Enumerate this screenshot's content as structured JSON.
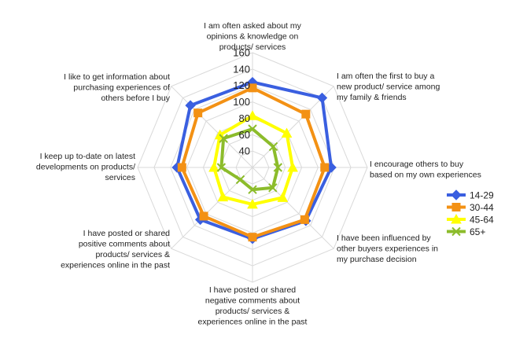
{
  "chart_data": {
    "type": "radar",
    "title": "",
    "rmin": 20,
    "rmax": 160,
    "ticks": [
      40,
      60,
      80,
      100,
      120,
      140,
      160
    ],
    "categories": [
      "I am often asked about my opinions & knowledge on products/ services",
      "I am often the first to buy a new product/ service among my family & friends",
      "I encourage others to buy based on my own experiences",
      "I have been influenced by other buyers experiences in my purchase decision",
      "I have posted or shared negative comments about products/ services & experiences online in the past",
      "I have posted or shared positive comments about products/ services & experiences online in the past",
      "I keep up to-date on latest developments on products/ services",
      "I like to get information about purchasing experiences of others before I buy"
    ],
    "category_lines": [
      [
        "I am often asked about my",
        "opinions & knowledge on",
        "products/ services"
      ],
      [
        "I am often the first to buy a",
        "new product/ service among",
        "my family & friends"
      ],
      [
        "I encourage others to buy",
        "based on my own experiences"
      ],
      [
        "I have been influenced by",
        "other buyers experiences in",
        "my purchase decision"
      ],
      [
        "I have posted or shared",
        "negative comments about",
        "products/ services &",
        "experiences online in the past"
      ],
      [
        "I have posted or shared",
        "positive comments about",
        "products/ services &",
        "experiences online in the past"
      ],
      [
        "I keep up to-date on latest",
        "developments on products/",
        "services"
      ],
      [
        "I like to get information about",
        "purchasing experiences of",
        "others before I buy"
      ]
    ],
    "series": [
      {
        "name": "14-29",
        "color": "#3a5fe0",
        "marker": "diamond",
        "values": [
          124,
          140,
          116,
          112,
          107,
          110,
          112,
          127
        ]
      },
      {
        "name": "30-44",
        "color": "#f39114",
        "marker": "square",
        "values": [
          117,
          112,
          108,
          110,
          105,
          104,
          106,
          114
        ]
      },
      {
        "name": "45-64",
        "color": "#ffff00",
        "marker": "triangle",
        "values": [
          83,
          79,
          69,
          72,
          65,
          71,
          67,
          76
        ]
      },
      {
        "name": "65+",
        "color": "#8cbc2b",
        "marker": "x",
        "values": [
          67,
          56,
          51,
          55,
          47,
          41,
          58,
          70
        ]
      }
    ],
    "legend_position": "right",
    "grid": true
  }
}
